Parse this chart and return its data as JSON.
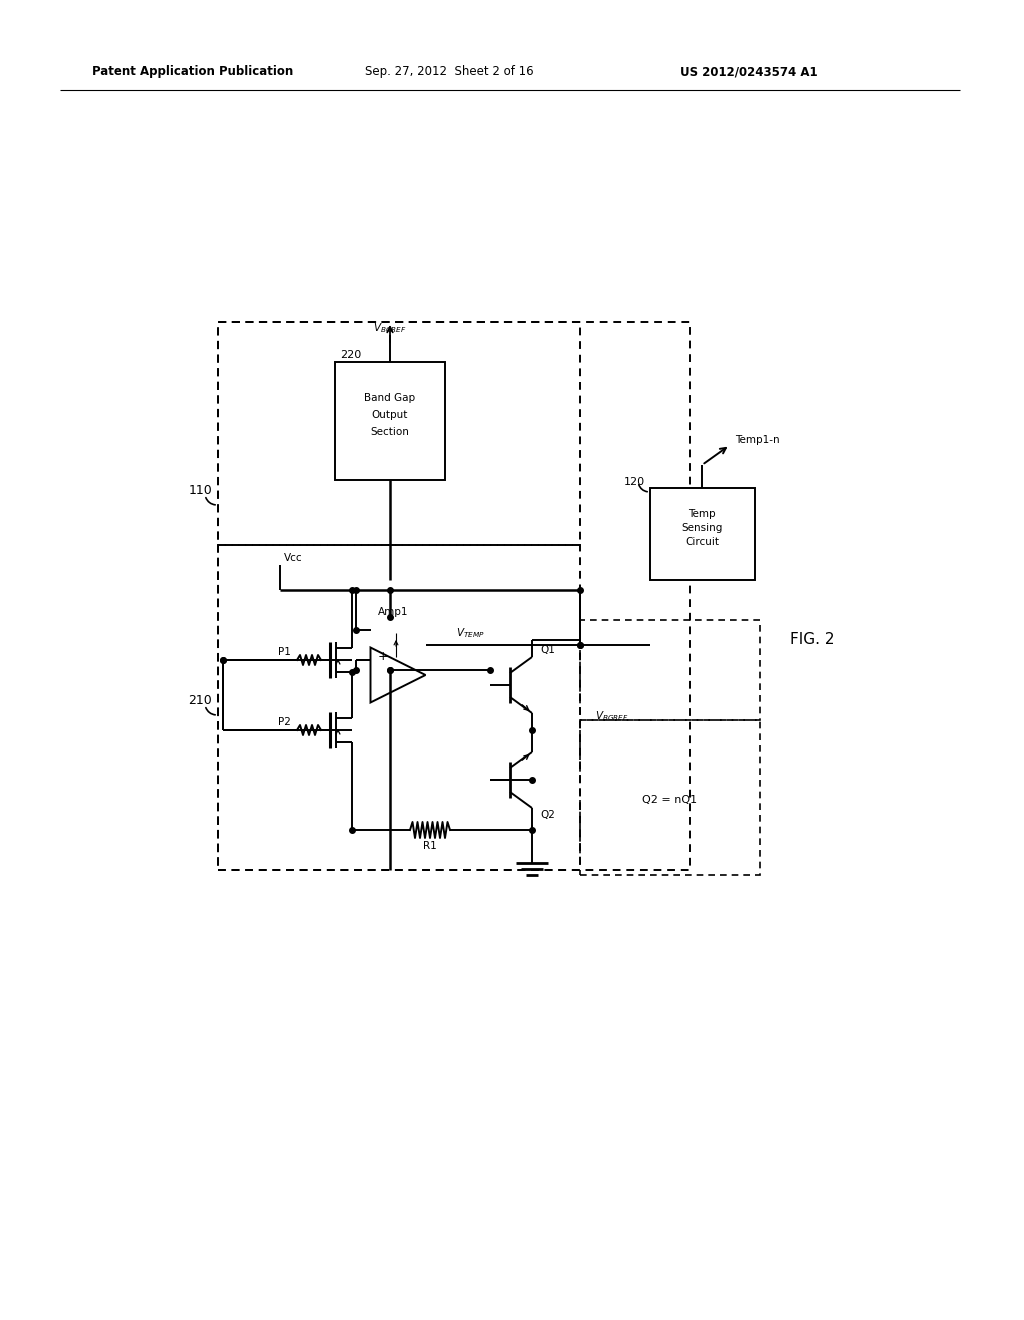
{
  "bg_color": "#ffffff",
  "line_color": "#000000",
  "header_left": "Patent Application Publication",
  "header_mid": "Sep. 27, 2012  Sheet 2 of 16",
  "header_right": "US 2012/0243574 A1",
  "fig_label": "FIG. 2"
}
